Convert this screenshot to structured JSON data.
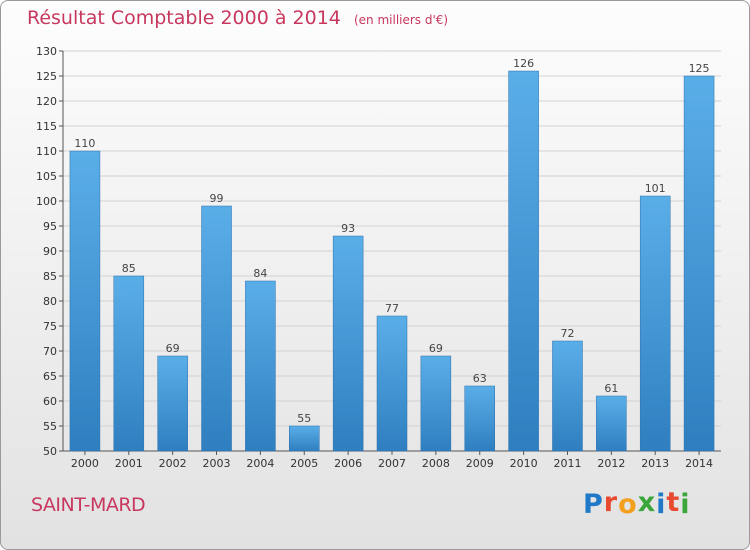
{
  "title": "Résultat Comptable 2000 à 2014",
  "subtitle": "(en milliers d'€)",
  "commune": "SAINT-MARD",
  "logo": {
    "text": "Proxiti",
    "letters": [
      {
        "ch": "P",
        "color": "#1f78c8"
      },
      {
        "ch": "r",
        "color": "#e84a2f"
      },
      {
        "ch": "o",
        "color": "#f2a01e"
      },
      {
        "ch": "x",
        "color": "#3aa63a"
      },
      {
        "ch": "i",
        "color": "#1f78c8"
      },
      {
        "ch": "t",
        "color": "#e84a2f"
      },
      {
        "ch": "i",
        "color": "#3aa63a"
      }
    ]
  },
  "colors": {
    "bar_top": "#5aaee8",
    "bar_bottom": "#2f7fc0",
    "title": "#c8385e"
  },
  "chart_data": {
    "type": "bar",
    "title": "Résultat Comptable 2000 à 2014",
    "subtitle": "(en milliers d'€)",
    "categories": [
      "2000",
      "2001",
      "2002",
      "2003",
      "2004",
      "2005",
      "2006",
      "2007",
      "2008",
      "2009",
      "2010",
      "2011",
      "2012",
      "2013",
      "2014"
    ],
    "values": [
      110,
      85,
      69,
      99,
      84,
      55,
      93,
      77,
      69,
      63,
      126,
      72,
      61,
      101,
      125
    ],
    "ylim": [
      50,
      130
    ],
    "yticks": [
      50,
      55,
      60,
      65,
      70,
      75,
      80,
      85,
      90,
      95,
      100,
      105,
      110,
      115,
      120,
      125,
      130
    ],
    "grid": true,
    "xlabel": "",
    "ylabel": ""
  }
}
